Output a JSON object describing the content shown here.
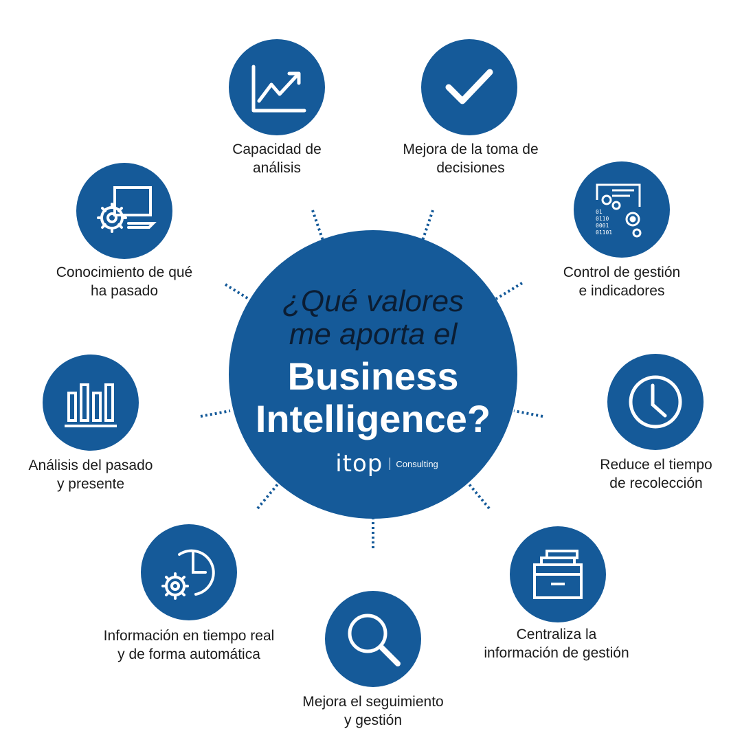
{
  "center": {
    "question_line1": "¿Qué valores",
    "question_line2": "me aporta el",
    "bi_line1": "Business",
    "bi_line2": "Intelligence?",
    "brand_logo": "itop",
    "brand_text": "Consulting"
  },
  "colors": {
    "circle_blue": "#155a99",
    "dark_text": "#0b1d33",
    "label_text": "#1b1b1b"
  },
  "benefits": [
    {
      "icon": "growth-chart-icon",
      "line1": "Capacidad de",
      "line2": "análisis"
    },
    {
      "icon": "checkmark-icon",
      "line1": "Mejora de la toma de",
      "line2": "decisiones"
    },
    {
      "icon": "dashboard-gears-icon",
      "line1": "Control de gestión",
      "line2": "e indicadores"
    },
    {
      "icon": "clock-icon",
      "line1": "Reduce el tiempo",
      "line2": "de recolección"
    },
    {
      "icon": "file-cabinet-icon",
      "line1": "Centraliza la",
      "line2": "información de gestión"
    },
    {
      "icon": "magnifier-icon",
      "line1": "Mejora el seguimiento",
      "line2": "y gestión"
    },
    {
      "icon": "clock-gear-icon",
      "line1": "Información en tiempo real",
      "line2": "y de forma automática"
    },
    {
      "icon": "bar-chart-icon",
      "line1": "Análisis del pasado",
      "line2": "y presente"
    },
    {
      "icon": "laptop-gear-icon",
      "line1": "Conocimiento de qué",
      "line2": "ha pasado"
    }
  ],
  "icon_text": {
    "binary": [
      "01",
      "0110",
      "0001",
      "01101"
    ]
  }
}
